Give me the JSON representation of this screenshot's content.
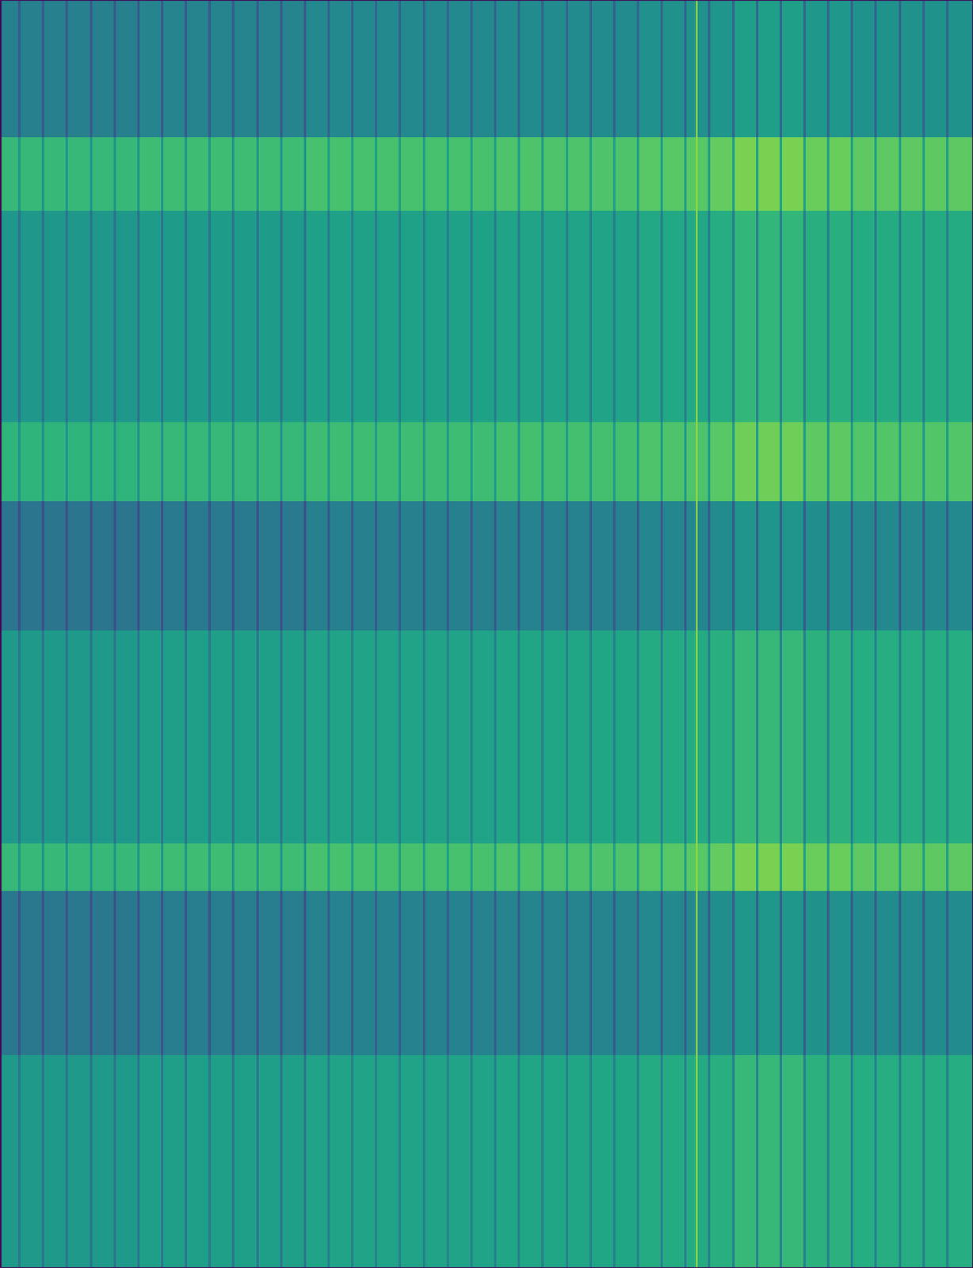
{
  "chart_data": {
    "type": "heatmap",
    "x_edges": [
      0,
      23.0,
      26.0,
      53.2,
      56.2,
      83.3,
      86.3,
      113.5,
      116.5,
      143.6,
      146.6,
      173.8,
      176.8,
      203.9,
      206.9,
      234.1,
      237.1,
      264.2,
      267.2,
      294.4,
      297.4,
      324.5,
      327.5,
      354.7,
      357.7,
      384.8,
      387.8,
      415.0,
      418.0,
      445.1,
      448.1,
      475.3,
      478.3,
      505.4,
      508.4,
      535.6,
      538.6,
      565.7,
      568.7,
      595.9,
      598.9,
      626.0,
      629.0,
      656.2,
      659.2,
      686.3,
      689.3,
      716.5,
      719.5,
      746.6,
      749.6,
      776.8,
      779.8,
      806.9,
      809.9,
      837.1,
      840.1,
      867.2,
      870.2,
      882.0,
      884.0,
      897.4,
      900.4,
      927.5,
      930.5,
      957.7,
      960.7,
      987.8,
      990.8,
      1018.0,
      1021.0,
      1048.1,
      1051.1,
      1078.3,
      1081.3,
      1108.4,
      1111.4,
      1138.6,
      1141.6,
      1168.7,
      1171.7,
      1198.9,
      1201.9,
      1233
    ],
    "y_edges": [
      0,
      175,
      268,
      536,
      636,
      800,
      1070,
      1130,
      1338,
      1608
    ],
    "cells": [
      [
        0.43,
        0.28,
        0.43,
        0.28,
        0.43,
        0.28,
        0.43,
        0.28,
        0.43,
        0.28,
        0.43,
        0.28,
        0.45,
        0.28,
        0.45,
        0.28,
        0.45,
        0.28,
        0.45,
        0.28,
        0.45,
        0.28,
        0.45,
        0.28,
        0.45,
        0.28,
        0.47,
        0.32,
        0.47,
        0.32,
        0.47,
        0.32,
        0.47,
        0.32,
        0.47,
        0.32,
        0.47,
        0.32,
        0.47,
        0.32,
        0.47,
        0.32,
        0.48,
        0.32,
        0.48,
        0.32,
        0.48,
        0.32,
        0.48,
        0.32,
        0.48,
        0.32,
        0.48,
        0.32,
        0.5,
        0.32,
        0.5,
        0.32,
        0.5,
        0.85,
        0.5,
        0.32,
        0.52,
        0.32,
        0.56,
        0.32,
        0.56,
        0.32,
        0.56,
        0.32,
        0.53,
        0.32,
        0.53,
        0.32,
        0.51,
        0.32,
        0.51,
        0.32,
        0.51,
        0.32,
        0.51,
        0.32,
        0.51
      ],
      [
        0.67,
        0.52,
        0.67,
        0.52,
        0.67,
        0.52,
        0.67,
        0.52,
        0.67,
        0.52,
        0.67,
        0.52,
        0.69,
        0.52,
        0.69,
        0.52,
        0.69,
        0.52,
        0.69,
        0.52,
        0.69,
        0.52,
        0.69,
        0.52,
        0.69,
        0.52,
        0.71,
        0.56,
        0.71,
        0.56,
        0.71,
        0.56,
        0.71,
        0.56,
        0.71,
        0.56,
        0.71,
        0.56,
        0.71,
        0.56,
        0.71,
        0.56,
        0.72,
        0.56,
        0.72,
        0.56,
        0.72,
        0.56,
        0.72,
        0.56,
        0.72,
        0.56,
        0.72,
        0.56,
        0.74,
        0.56,
        0.74,
        0.56,
        0.74,
        0.85,
        0.74,
        0.56,
        0.76,
        0.56,
        0.8,
        0.56,
        0.8,
        0.56,
        0.8,
        0.56,
        0.77,
        0.56,
        0.77,
        0.56,
        0.75,
        0.56,
        0.75,
        0.56,
        0.75,
        0.56,
        0.75,
        0.56,
        0.75
      ],
      [
        0.53,
        0.38,
        0.53,
        0.38,
        0.53,
        0.38,
        0.53,
        0.38,
        0.53,
        0.38,
        0.53,
        0.38,
        0.55,
        0.38,
        0.55,
        0.38,
        0.55,
        0.38,
        0.55,
        0.38,
        0.55,
        0.38,
        0.55,
        0.38,
        0.55,
        0.38,
        0.57,
        0.42,
        0.57,
        0.42,
        0.57,
        0.42,
        0.57,
        0.42,
        0.57,
        0.42,
        0.57,
        0.42,
        0.57,
        0.42,
        0.57,
        0.42,
        0.58,
        0.42,
        0.58,
        0.42,
        0.58,
        0.42,
        0.58,
        0.42,
        0.58,
        0.42,
        0.58,
        0.42,
        0.6,
        0.42,
        0.6,
        0.42,
        0.6,
        0.85,
        0.6,
        0.42,
        0.62,
        0.42,
        0.66,
        0.42,
        0.66,
        0.42,
        0.66,
        0.42,
        0.63,
        0.42,
        0.63,
        0.42,
        0.61,
        0.42,
        0.61,
        0.42,
        0.61,
        0.42,
        0.61,
        0.42,
        0.61
      ],
      [
        0.65,
        0.5,
        0.65,
        0.5,
        0.65,
        0.5,
        0.65,
        0.5,
        0.65,
        0.5,
        0.65,
        0.5,
        0.67,
        0.5,
        0.67,
        0.5,
        0.67,
        0.5,
        0.67,
        0.5,
        0.67,
        0.5,
        0.67,
        0.5,
        0.67,
        0.5,
        0.69,
        0.54,
        0.69,
        0.54,
        0.69,
        0.54,
        0.69,
        0.54,
        0.69,
        0.54,
        0.69,
        0.54,
        0.69,
        0.54,
        0.69,
        0.54,
        0.7,
        0.54,
        0.7,
        0.54,
        0.7,
        0.54,
        0.7,
        0.54,
        0.7,
        0.54,
        0.7,
        0.54,
        0.72,
        0.54,
        0.72,
        0.54,
        0.72,
        0.85,
        0.72,
        0.54,
        0.74,
        0.54,
        0.78,
        0.54,
        0.78,
        0.54,
        0.78,
        0.54,
        0.75,
        0.54,
        0.75,
        0.54,
        0.73,
        0.54,
        0.73,
        0.54,
        0.73,
        0.54,
        0.73,
        0.54,
        0.73
      ],
      [
        0.39,
        0.24,
        0.39,
        0.24,
        0.39,
        0.24,
        0.39,
        0.24,
        0.39,
        0.24,
        0.39,
        0.24,
        0.41,
        0.24,
        0.41,
        0.24,
        0.41,
        0.24,
        0.41,
        0.24,
        0.41,
        0.24,
        0.41,
        0.24,
        0.41,
        0.24,
        0.43,
        0.28,
        0.43,
        0.28,
        0.43,
        0.28,
        0.43,
        0.28,
        0.43,
        0.28,
        0.43,
        0.28,
        0.43,
        0.28,
        0.43,
        0.28,
        0.44,
        0.28,
        0.44,
        0.28,
        0.44,
        0.28,
        0.44,
        0.28,
        0.44,
        0.28,
        0.44,
        0.28,
        0.46,
        0.28,
        0.46,
        0.28,
        0.46,
        0.85,
        0.46,
        0.28,
        0.48,
        0.28,
        0.52,
        0.28,
        0.52,
        0.28,
        0.52,
        0.28,
        0.49,
        0.28,
        0.49,
        0.28,
        0.47,
        0.28,
        0.47,
        0.28,
        0.47,
        0.28,
        0.47,
        0.28,
        0.47
      ],
      [
        0.54,
        0.39,
        0.54,
        0.39,
        0.54,
        0.39,
        0.54,
        0.39,
        0.54,
        0.39,
        0.54,
        0.39,
        0.56,
        0.39,
        0.56,
        0.39,
        0.56,
        0.39,
        0.56,
        0.39,
        0.56,
        0.39,
        0.56,
        0.39,
        0.56,
        0.39,
        0.58,
        0.43,
        0.58,
        0.43,
        0.58,
        0.43,
        0.58,
        0.43,
        0.58,
        0.43,
        0.58,
        0.43,
        0.58,
        0.43,
        0.58,
        0.43,
        0.59,
        0.43,
        0.59,
        0.43,
        0.59,
        0.43,
        0.59,
        0.43,
        0.59,
        0.43,
        0.59,
        0.43,
        0.61,
        0.43,
        0.61,
        0.43,
        0.61,
        0.85,
        0.61,
        0.43,
        0.63,
        0.43,
        0.67,
        0.43,
        0.67,
        0.43,
        0.67,
        0.43,
        0.64,
        0.43,
        0.64,
        0.43,
        0.62,
        0.43,
        0.62,
        0.43,
        0.62,
        0.43,
        0.62,
        0.43,
        0.62
      ],
      [
        0.67,
        0.52,
        0.67,
        0.52,
        0.67,
        0.52,
        0.67,
        0.52,
        0.67,
        0.52,
        0.67,
        0.52,
        0.69,
        0.52,
        0.69,
        0.52,
        0.69,
        0.52,
        0.69,
        0.52,
        0.69,
        0.52,
        0.69,
        0.52,
        0.69,
        0.52,
        0.71,
        0.56,
        0.71,
        0.56,
        0.71,
        0.56,
        0.71,
        0.56,
        0.71,
        0.56,
        0.71,
        0.56,
        0.71,
        0.56,
        0.71,
        0.56,
        0.72,
        0.56,
        0.72,
        0.56,
        0.72,
        0.56,
        0.72,
        0.56,
        0.72,
        0.56,
        0.72,
        0.56,
        0.74,
        0.56,
        0.74,
        0.56,
        0.74,
        0.85,
        0.74,
        0.56,
        0.76,
        0.56,
        0.8,
        0.56,
        0.8,
        0.56,
        0.8,
        0.56,
        0.77,
        0.56,
        0.77,
        0.56,
        0.75,
        0.56,
        0.75,
        0.56,
        0.75,
        0.56,
        0.75,
        0.56,
        0.75
      ],
      [
        0.4,
        0.25,
        0.4,
        0.25,
        0.4,
        0.25,
        0.4,
        0.25,
        0.4,
        0.25,
        0.4,
        0.25,
        0.42,
        0.25,
        0.42,
        0.25,
        0.42,
        0.25,
        0.42,
        0.25,
        0.42,
        0.25,
        0.42,
        0.25,
        0.42,
        0.25,
        0.44,
        0.29,
        0.44,
        0.29,
        0.44,
        0.29,
        0.44,
        0.29,
        0.44,
        0.29,
        0.44,
        0.29,
        0.44,
        0.29,
        0.44,
        0.29,
        0.45,
        0.29,
        0.45,
        0.29,
        0.45,
        0.29,
        0.45,
        0.29,
        0.45,
        0.29,
        0.45,
        0.29,
        0.47,
        0.29,
        0.47,
        0.29,
        0.47,
        0.85,
        0.47,
        0.29,
        0.49,
        0.29,
        0.53,
        0.29,
        0.53,
        0.29,
        0.53,
        0.29,
        0.5,
        0.29,
        0.5,
        0.29,
        0.48,
        0.29,
        0.48,
        0.29,
        0.48,
        0.29,
        0.48,
        0.29,
        0.48
      ],
      [
        0.54,
        0.39,
        0.54,
        0.39,
        0.54,
        0.39,
        0.54,
        0.39,
        0.54,
        0.39,
        0.54,
        0.39,
        0.56,
        0.39,
        0.56,
        0.39,
        0.56,
        0.39,
        0.56,
        0.39,
        0.56,
        0.39,
        0.56,
        0.39,
        0.56,
        0.39,
        0.58,
        0.43,
        0.58,
        0.43,
        0.58,
        0.43,
        0.58,
        0.43,
        0.58,
        0.43,
        0.58,
        0.43,
        0.58,
        0.43,
        0.58,
        0.43,
        0.59,
        0.43,
        0.59,
        0.43,
        0.59,
        0.43,
        0.59,
        0.43,
        0.59,
        0.43,
        0.59,
        0.43,
        0.61,
        0.43,
        0.61,
        0.43,
        0.61,
        0.85,
        0.61,
        0.43,
        0.63,
        0.43,
        0.67,
        0.43,
        0.67,
        0.43,
        0.67,
        0.43,
        0.64,
        0.43,
        0.64,
        0.43,
        0.62,
        0.43,
        0.62,
        0.43,
        0.62,
        0.43,
        0.62,
        0.43,
        0.62
      ]
    ],
    "color_range": [
      0,
      1
    ],
    "xlim": [
      0,
      1233
    ],
    "ylim": [
      1608,
      0
    ],
    "tick_labels": false
  }
}
